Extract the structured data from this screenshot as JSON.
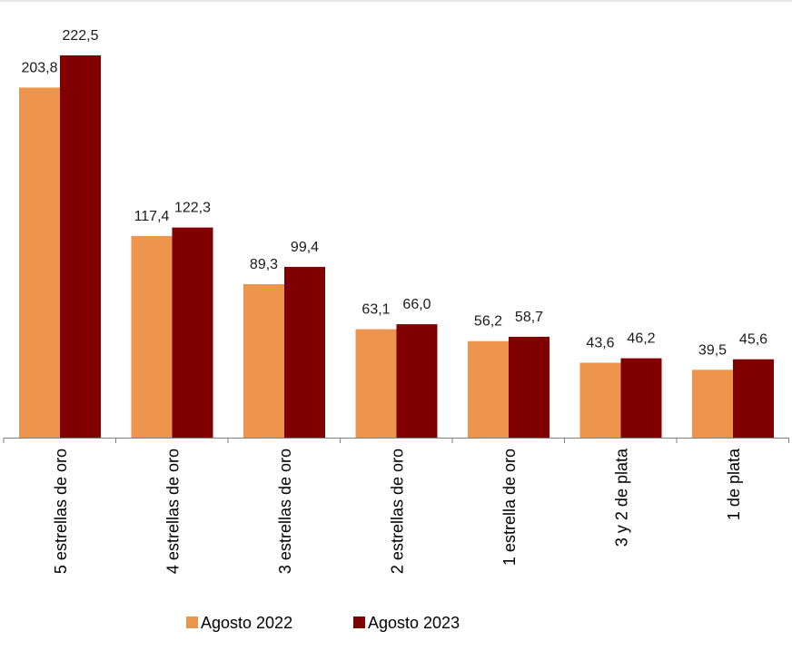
{
  "chart_data": {
    "type": "bar",
    "title": "",
    "xlabel": "",
    "ylabel": "",
    "ylim": [
      0,
      222.5
    ],
    "categories": [
      "5 estrellas de oro",
      "4 estrellas de oro",
      "3 estrellas de oro",
      "2 estrellas de oro",
      "1 estrella de oro",
      "3 y 2 de plata",
      "1 de plata"
    ],
    "series": [
      {
        "name": "Agosto 2022",
        "color": "#ed954c",
        "values": [
          203.8,
          117.4,
          89.3,
          63.1,
          56.2,
          43.6,
          39.5
        ],
        "labels": [
          "203,8",
          "117,4",
          "89,3",
          "63,1",
          "56,2",
          "43,6",
          "39,5"
        ]
      },
      {
        "name": "Agosto 2023",
        "color": "#800000",
        "values": [
          222.5,
          122.3,
          99.4,
          66.0,
          58.7,
          46.2,
          45.6
        ],
        "labels": [
          "222,5",
          "122,3",
          "99,4",
          "66,0",
          "58,7",
          "46,2",
          "45,6"
        ]
      }
    ],
    "legend_position": "bottom",
    "grid": false
  }
}
